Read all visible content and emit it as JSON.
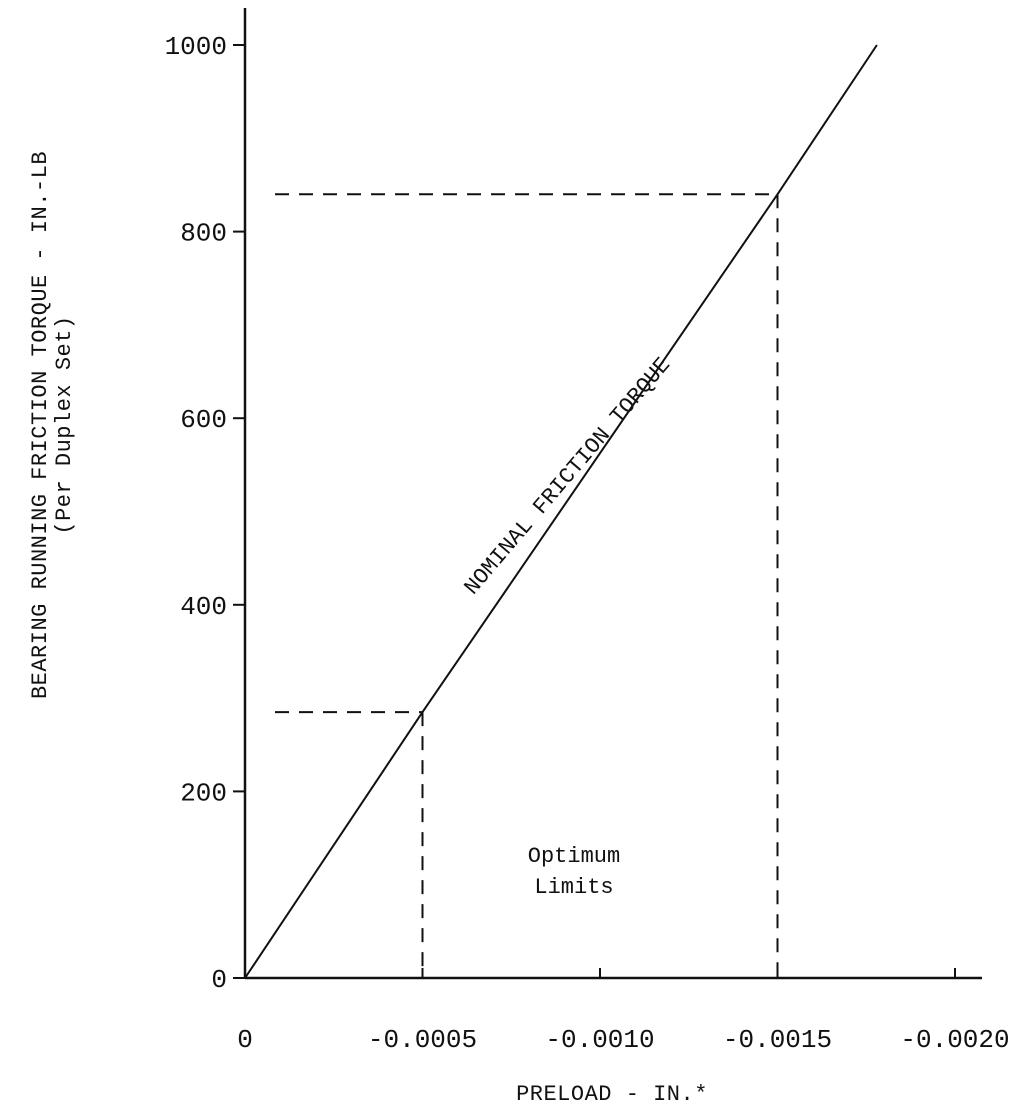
{
  "chart_data": {
    "type": "line",
    "xlabel": "PRELOAD - IN.*",
    "ylabel": "BEARING RUNNING FRICTION TORQUE - IN.-LB",
    "ylabel_sub": "(Per Duplex Set)",
    "xlim": [
      0,
      -0.002
    ],
    "ylim": [
      0,
      1000
    ],
    "x_ticks": [
      0,
      -0.0005,
      -0.001,
      -0.0015,
      -0.002
    ],
    "x_tick_labels": [
      "0",
      "-0.0005",
      "-0.0010",
      "-0.0015",
      "-0.0020"
    ],
    "y_ticks": [
      0,
      200,
      400,
      600,
      800,
      1000
    ],
    "y_tick_labels": [
      "0",
      "200",
      "400",
      "600",
      "800",
      "1000"
    ],
    "grid": false,
    "series": [
      {
        "name": "NOMINAL FRICTION TORQUE",
        "x": [
          0,
          -0.0005,
          -0.0015,
          -0.00178
        ],
        "y": [
          0,
          285,
          840,
          1000
        ]
      }
    ],
    "reference_lines": [
      {
        "x": -0.0005,
        "y": 285
      },
      {
        "x": -0.0015,
        "y": 840
      }
    ],
    "annotations": [
      {
        "text": "Optimum",
        "x": -0.001,
        "y": 150
      },
      {
        "text": "Limits",
        "x": -0.001,
        "y": 105
      }
    ]
  }
}
